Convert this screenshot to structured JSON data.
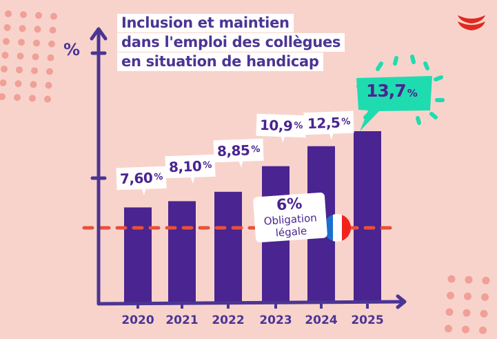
{
  "chart_data": {
    "type": "bar",
    "title": "Inclusion et maintien dans l'emploi des collègues en situation de handicap",
    "title_lines": [
      "Inclusion et maintien",
      "dans l'emploi des collègues",
      "en situation de handicap"
    ],
    "xlabel": "",
    "ylabel": "%",
    "categories": [
      "2020",
      "2021",
      "2022",
      "2023",
      "2024",
      "2025"
    ],
    "values": [
      7.6,
      8.1,
      8.85,
      10.9,
      12.5,
      13.7
    ],
    "value_labels": [
      "7,60",
      "8,10",
      "8,85",
      "10,9",
      "12,5",
      "13,7"
    ],
    "value_suffix": "%",
    "ylim": [
      0,
      16
    ],
    "grid": false,
    "reference_line": {
      "value": 6,
      "label_value": "6%",
      "label_lines": [
        "Obligation",
        "légale"
      ],
      "style": "dashed"
    },
    "highlight_category": "2025"
  },
  "colors": {
    "background": "#f8d3cc",
    "bar": "#4a2490",
    "axis": "#4a3593",
    "text": "#4a3593",
    "reference_line": "#e8503a",
    "highlight_callout": "#1fdcb0",
    "dots": "#f0a097",
    "logo": "#e02a1e",
    "flag_blue": "#1a6fd0",
    "flag_red": "#f0231f"
  },
  "logo": {
    "icon": "stacked-red-arcs-logo"
  }
}
